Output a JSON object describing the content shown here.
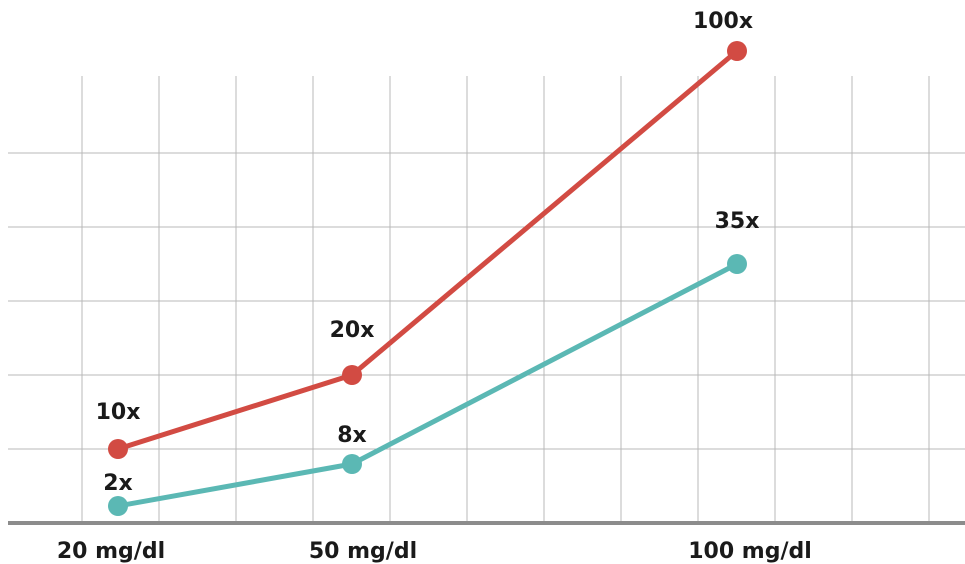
{
  "chart_data": {
    "type": "line",
    "categories": [
      "20 mg/dl",
      "50 mg/dl",
      "100 mg/dl"
    ],
    "series": [
      {
        "values": [
          10,
          20,
          100
        ],
        "labels": [
          "10x",
          "20x",
          "100x"
        ],
        "color": "#d24b43"
      },
      {
        "values": [
          2,
          8,
          35
        ],
        "labels": [
          "2x",
          "8x",
          "35x"
        ],
        "color": "#5bb8b4"
      }
    ],
    "title": "",
    "xlabel": "",
    "ylabel": "",
    "grid": true,
    "legend": "none"
  }
}
